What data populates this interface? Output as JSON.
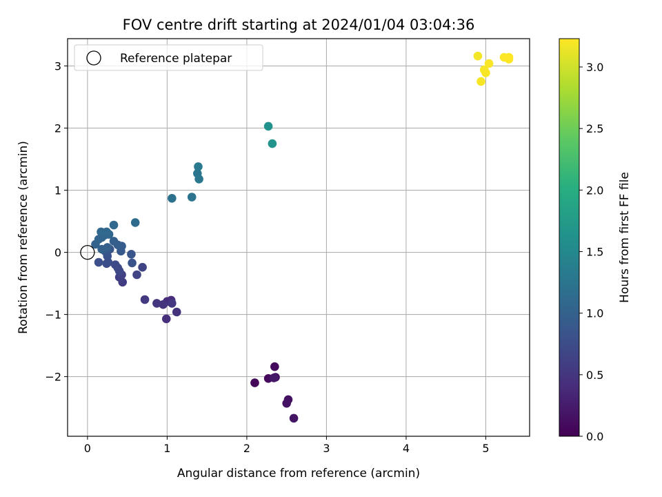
{
  "chart_data": {
    "type": "scatter",
    "title": "FOV centre drift starting at 2024/01/04 03:04:36",
    "xlabel": "Angular distance from reference (arcmin)",
    "ylabel": "Rotation from reference (arcmin)",
    "xlim": [
      -0.25,
      5.55
    ],
    "ylim": [
      -2.96,
      3.44
    ],
    "x_ticks": [
      0,
      1,
      2,
      3,
      4,
      5
    ],
    "y_ticks": [
      -2,
      -1,
      0,
      1,
      2,
      3
    ],
    "grid": true,
    "legend": {
      "position": "top-left",
      "entries": [
        "Reference platepar"
      ]
    },
    "reference_point": {
      "x": 0,
      "y": 0
    },
    "colormap": "viridis",
    "colorbar": {
      "label": "Hours from first FF file",
      "range": [
        0,
        3.23
      ],
      "ticks": [
        "0.0",
        "0.5",
        "1.0",
        "1.5",
        "2.0",
        "2.5",
        "3.0"
      ]
    },
    "series": [
      {
        "points": [
          {
            "x": 2.1,
            "y": -2.1,
            "c": 0.05
          },
          {
            "x": 2.27,
            "y": -2.03,
            "c": 0.08
          },
          {
            "x": 2.35,
            "y": -1.84,
            "c": 0.1
          },
          {
            "x": 2.36,
            "y": -2.01,
            "c": 0.12
          },
          {
            "x": 2.52,
            "y": -2.37,
            "c": 0.14
          },
          {
            "x": 2.5,
            "y": -2.43,
            "c": 0.16
          },
          {
            "x": 2.59,
            "y": -2.67,
            "c": 0.18
          },
          {
            "x": 2.34,
            "y": -2.02,
            "c": 0.2
          },
          {
            "x": 1.05,
            "y": -0.77,
            "c": 0.4
          },
          {
            "x": 1.0,
            "y": -0.79,
            "c": 0.42
          },
          {
            "x": 0.99,
            "y": -1.07,
            "c": 0.44
          },
          {
            "x": 1.12,
            "y": -0.96,
            "c": 0.46
          },
          {
            "x": 0.95,
            "y": -0.84,
            "c": 0.48
          },
          {
            "x": 0.87,
            "y": -0.82,
            "c": 0.5
          },
          {
            "x": 1.06,
            "y": -0.82,
            "c": 0.52
          },
          {
            "x": 0.72,
            "y": -0.76,
            "c": 0.54
          },
          {
            "x": 0.44,
            "y": -0.48,
            "c": 0.58
          },
          {
            "x": 0.4,
            "y": -0.4,
            "c": 0.6
          },
          {
            "x": 0.43,
            "y": -0.36,
            "c": 0.62
          },
          {
            "x": 0.62,
            "y": -0.36,
            "c": 0.64
          },
          {
            "x": 0.69,
            "y": -0.24,
            "c": 0.66
          },
          {
            "x": 0.38,
            "y": -0.25,
            "c": 0.68
          },
          {
            "x": 0.4,
            "y": -0.3,
            "c": 0.7
          },
          {
            "x": 0.35,
            "y": -0.2,
            "c": 0.72
          },
          {
            "x": 0.26,
            "y": -0.16,
            "c": 0.74
          },
          {
            "x": 0.24,
            "y": -0.18,
            "c": 0.76
          },
          {
            "x": 0.14,
            "y": -0.16,
            "c": 0.78
          },
          {
            "x": 0.25,
            "y": -0.06,
            "c": 0.8
          },
          {
            "x": 0.56,
            "y": -0.17,
            "c": 0.82
          },
          {
            "x": 0.55,
            "y": -0.03,
            "c": 0.84
          },
          {
            "x": 0.28,
            "y": 0.05,
            "c": 0.86
          },
          {
            "x": 0.22,
            "y": 0.02,
            "c": 0.88
          },
          {
            "x": 0.42,
            "y": 0.02,
            "c": 0.9
          },
          {
            "x": 0.43,
            "y": 0.1,
            "c": 0.92
          },
          {
            "x": 0.38,
            "y": 0.12,
            "c": 0.94
          },
          {
            "x": 0.33,
            "y": 0.18,
            "c": 0.96
          },
          {
            "x": 0.25,
            "y": 0.08,
            "c": 0.98
          },
          {
            "x": 0.18,
            "y": 0.05,
            "c": 1.0
          },
          {
            "x": 0.1,
            "y": 0.13,
            "c": 1.02
          },
          {
            "x": 0.14,
            "y": 0.21,
            "c": 1.04
          },
          {
            "x": 0.18,
            "y": 0.24,
            "c": 1.05
          },
          {
            "x": 0.22,
            "y": 0.28,
            "c": 1.06
          },
          {
            "x": 0.27,
            "y": 0.29,
            "c": 1.07
          },
          {
            "x": 0.17,
            "y": 0.33,
            "c": 1.08
          },
          {
            "x": 0.24,
            "y": 0.33,
            "c": 1.09
          },
          {
            "x": 0.33,
            "y": 0.44,
            "c": 1.1
          },
          {
            "x": 0.6,
            "y": 0.48,
            "c": 1.12
          },
          {
            "x": 1.06,
            "y": 0.87,
            "c": 1.2
          },
          {
            "x": 1.31,
            "y": 0.89,
            "c": 1.22
          },
          {
            "x": 1.38,
            "y": 1.27,
            "c": 1.26
          },
          {
            "x": 1.4,
            "y": 1.18,
            "c": 1.28
          },
          {
            "x": 1.39,
            "y": 1.38,
            "c": 1.3
          },
          {
            "x": 2.27,
            "y": 2.03,
            "c": 1.62
          },
          {
            "x": 2.32,
            "y": 1.75,
            "c": 1.66
          },
          {
            "x": 4.9,
            "y": 3.16,
            "c": 3.18
          },
          {
            "x": 4.98,
            "y": 2.94,
            "c": 3.19
          },
          {
            "x": 5.0,
            "y": 2.89,
            "c": 3.2
          },
          {
            "x": 4.94,
            "y": 2.75,
            "c": 3.2
          },
          {
            "x": 5.04,
            "y": 3.04,
            "c": 3.21
          },
          {
            "x": 5.23,
            "y": 3.14,
            "c": 3.22
          },
          {
            "x": 5.29,
            "y": 3.11,
            "c": 3.22
          },
          {
            "x": 5.29,
            "y": 3.14,
            "c": 3.23
          }
        ]
      }
    ]
  }
}
